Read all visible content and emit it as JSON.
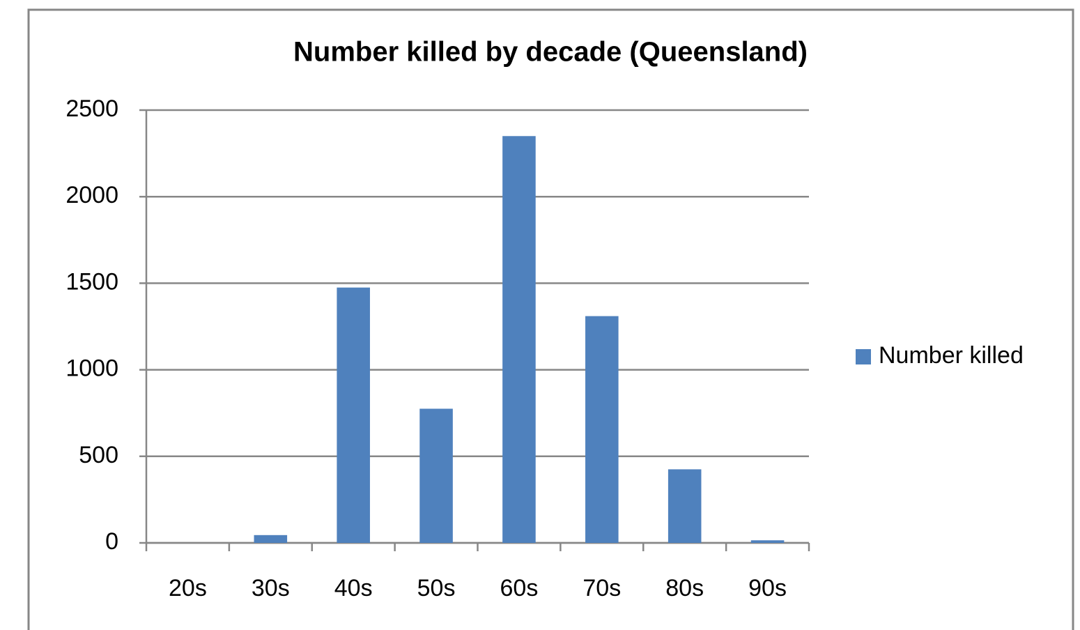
{
  "chart_data": {
    "type": "bar",
    "title": "Number killed by decade (Queensland)",
    "categories": [
      "20s",
      "30s",
      "40s",
      "50s",
      "60s",
      "70s",
      "80s",
      "90s"
    ],
    "series": [
      {
        "name": "Number killed",
        "color": "#4f81bd",
        "values": [
          0,
          45,
          1475,
          775,
          2350,
          1310,
          425,
          15
        ]
      }
    ],
    "ylim": [
      0,
      2500
    ],
    "yticks": [
      0,
      500,
      1000,
      1500,
      2000,
      2500
    ],
    "grid": true,
    "legend": "right"
  }
}
